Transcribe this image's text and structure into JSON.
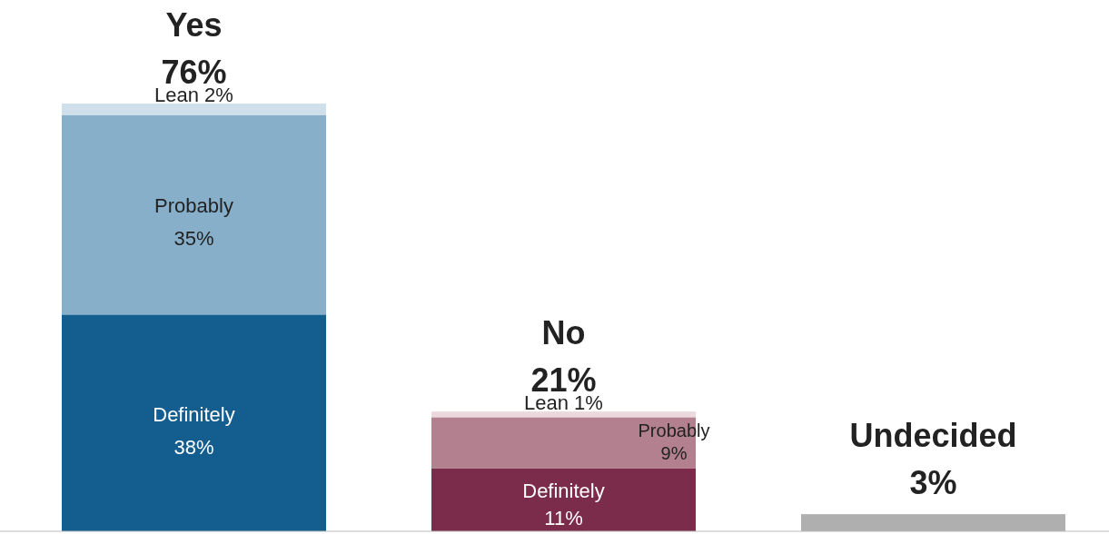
{
  "chart_data": {
    "type": "bar",
    "stacked": true,
    "legend": false,
    "categories": [
      "Yes",
      "No",
      "Undecided"
    ],
    "series": [
      {
        "name": "Definitely",
        "colors": [
          "#135e8e",
          "#7b2c4a",
          null
        ],
        "values": [
          38,
          11,
          null
        ],
        "value_labels": [
          "38%",
          "11%",
          null
        ]
      },
      {
        "name": "Probably",
        "colors": [
          "#87afc9",
          "#b3808f",
          null
        ],
        "values": [
          35,
          9,
          null
        ],
        "value_labels": [
          "35%",
          "9%",
          null
        ]
      },
      {
        "name": "Lean",
        "colors": [
          "#cfe0ea",
          "#ecd9de",
          null
        ],
        "values": [
          2,
          1,
          null
        ],
        "value_labels": [
          "2%",
          "1%",
          null
        ]
      },
      {
        "color": "#afafb0",
        "values": [
          null,
          null,
          3
        ]
      }
    ],
    "totals": [
      "76%",
      "21%",
      "3%"
    ]
  }
}
